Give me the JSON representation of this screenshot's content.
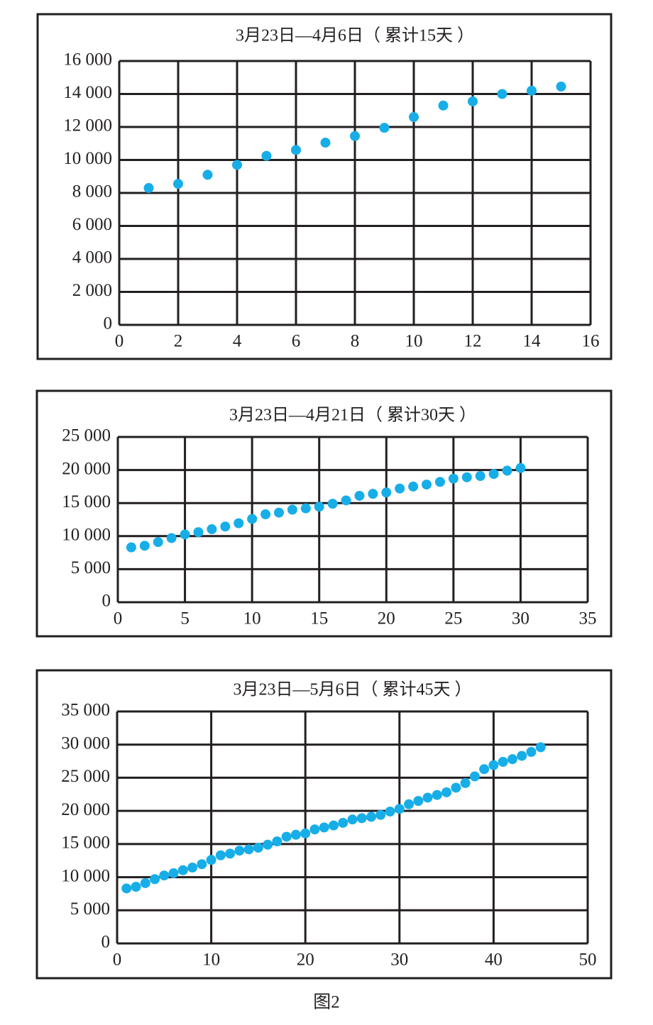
{
  "chart_data": [
    {
      "type": "scatter",
      "title": "3月23日—4月6日（ 累计15天 ）",
      "x": [
        1,
        2,
        3,
        4,
        5,
        6,
        7,
        8,
        9,
        10,
        11,
        12,
        13,
        14,
        15
      ],
      "values": [
        8300,
        8550,
        9100,
        9700,
        10250,
        10600,
        11050,
        11450,
        11950,
        12600,
        13300,
        13550,
        14000,
        14200,
        14450
      ],
      "color": "#17aee8",
      "grid": true,
      "xlim": [
        0,
        16
      ],
      "xticks": [
        0,
        2,
        4,
        6,
        8,
        10,
        12,
        14,
        16
      ],
      "ylim": [
        0,
        16000
      ],
      "yticks": [
        0,
        {
          "value": 2000,
          "label": "2 000"
        },
        {
          "value": 4000,
          "label": "4 000"
        },
        {
          "value": 6000,
          "label": "6 000"
        },
        {
          "value": 8000,
          "label": "8 000"
        },
        {
          "value": 10000,
          "label": "10 000"
        },
        {
          "value": 12000,
          "label": "12 000"
        },
        {
          "value": 14000,
          "label": "14 000"
        },
        {
          "value": 16000,
          "label": "16 000"
        }
      ]
    },
    {
      "type": "scatter",
      "title": "3月23日—4月21日（ 累计30天 ）",
      "x": [
        1,
        2,
        3,
        4,
        5,
        6,
        7,
        8,
        9,
        10,
        11,
        12,
        13,
        14,
        15,
        16,
        17,
        18,
        19,
        20,
        21,
        22,
        23,
        24,
        25,
        26,
        27,
        28,
        29,
        30
      ],
      "values": [
        8300,
        8550,
        9100,
        9700,
        10250,
        10600,
        11050,
        11450,
        11950,
        12600,
        13300,
        13550,
        14000,
        14200,
        14450,
        14900,
        15400,
        16100,
        16400,
        16600,
        17200,
        17500,
        17800,
        18200,
        18700,
        18900,
        19100,
        19400,
        19900,
        20300
      ],
      "color": "#17aee8",
      "grid": true,
      "xlim": [
        0,
        35
      ],
      "xticks": [
        0,
        5,
        10,
        15,
        20,
        25,
        30,
        35
      ],
      "ylim": [
        0,
        25000
      ],
      "yticks": [
        0,
        {
          "value": 5000,
          "label": "5 000"
        },
        {
          "value": 10000,
          "label": "10 000"
        },
        {
          "value": 15000,
          "label": "15 000"
        },
        {
          "value": 20000,
          "label": "20 000"
        },
        {
          "value": 25000,
          "label": "25 000"
        }
      ]
    },
    {
      "type": "scatter",
      "title": "3月23日—5月6日（ 累计45天 ）",
      "x": [
        1,
        2,
        3,
        4,
        5,
        6,
        7,
        8,
        9,
        10,
        11,
        12,
        13,
        14,
        15,
        16,
        17,
        18,
        19,
        20,
        21,
        22,
        23,
        24,
        25,
        26,
        27,
        28,
        29,
        30,
        31,
        32,
        33,
        34,
        35,
        36,
        37,
        38,
        39,
        40,
        41,
        42,
        43,
        44,
        45
      ],
      "values": [
        8300,
        8550,
        9100,
        9700,
        10250,
        10600,
        11050,
        11450,
        11950,
        12600,
        13300,
        13550,
        14000,
        14200,
        14450,
        14900,
        15400,
        16100,
        16400,
        16600,
        17200,
        17500,
        17800,
        18200,
        18700,
        18900,
        19100,
        19400,
        19900,
        20300,
        21000,
        21500,
        22000,
        22400,
        22800,
        23500,
        24200,
        25200,
        26300,
        26900,
        27400,
        27800,
        28300,
        28900,
        29600
      ],
      "color": "#17aee8",
      "grid": true,
      "xlim": [
        0,
        50
      ],
      "xticks": [
        0,
        10,
        20,
        30,
        40,
        50
      ],
      "ylim": [
        0,
        35000
      ],
      "yticks": [
        0,
        {
          "value": 5000,
          "label": "5 000"
        },
        {
          "value": 10000,
          "label": "10 000"
        },
        {
          "value": 15000,
          "label": "15 000"
        },
        {
          "value": 20000,
          "label": "20 000"
        },
        {
          "value": 25000,
          "label": "25 000"
        },
        {
          "value": 30000,
          "label": "30 000"
        },
        {
          "value": 35000,
          "label": "35 000"
        }
      ]
    }
  ],
  "caption": "图2"
}
